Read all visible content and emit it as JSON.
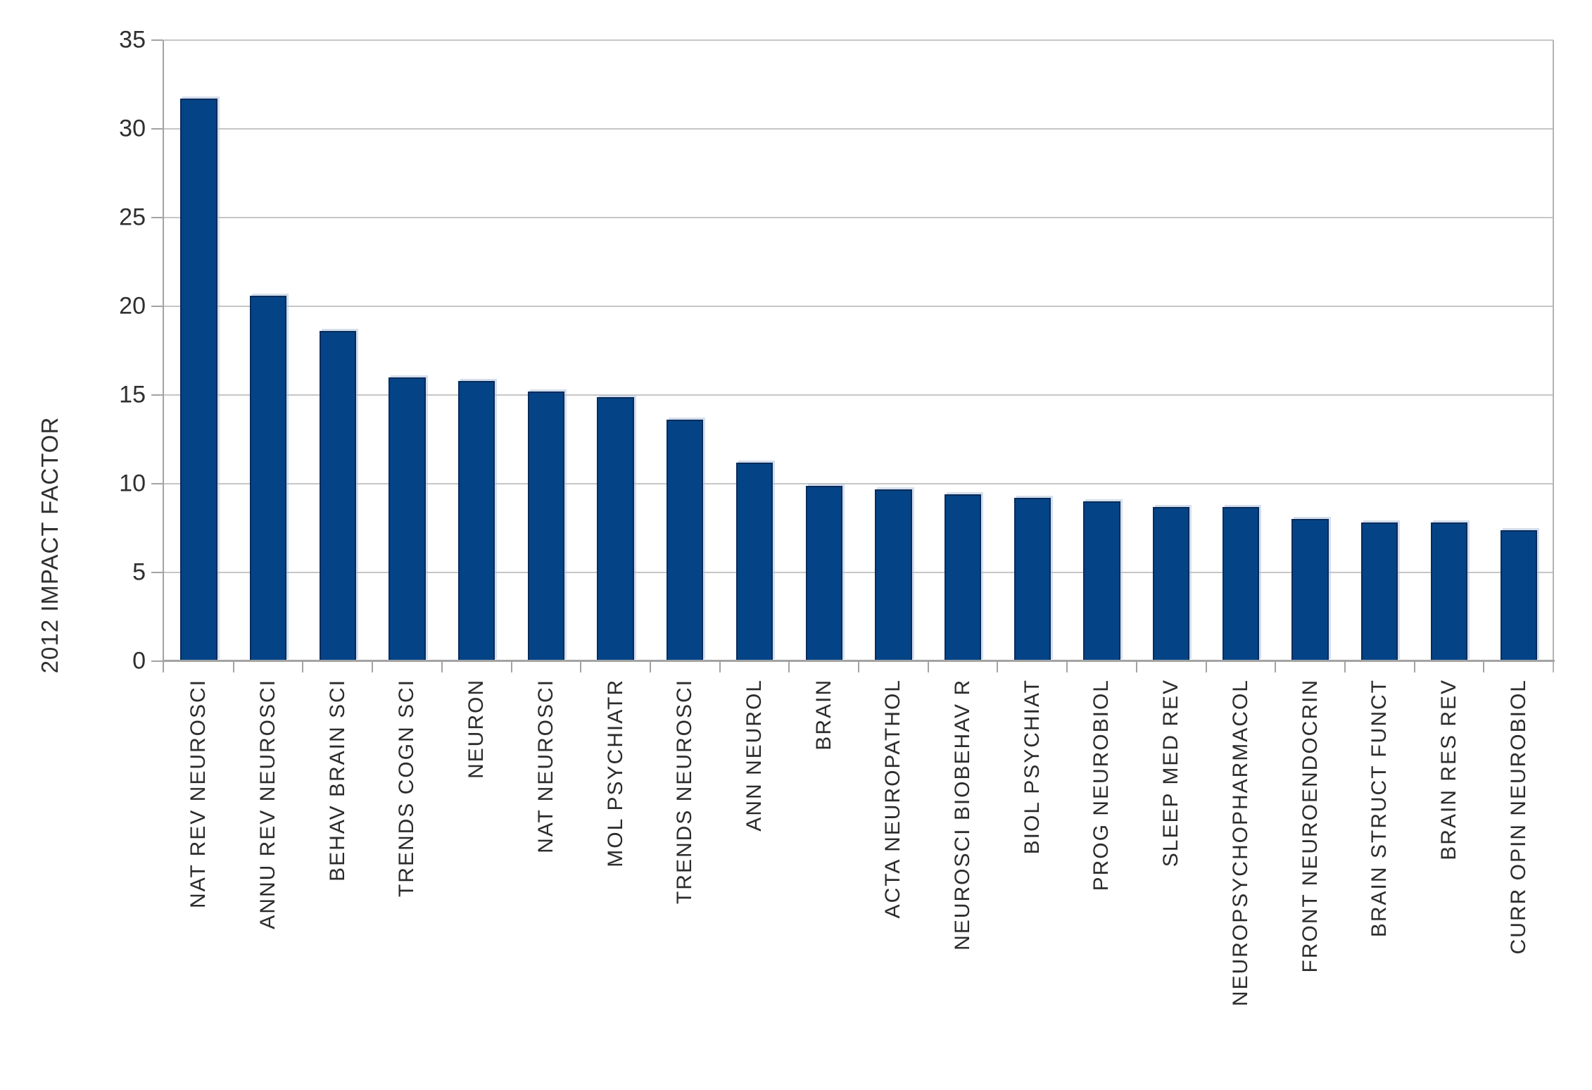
{
  "chart_data": {
    "type": "bar",
    "title": "",
    "xlabel": "",
    "ylabel": "2012 IMPACT FACTOR",
    "categories": [
      "NAT REV NEUROSCI",
      "ANNU REV NEUROSCI",
      "BEHAV BRAIN SCI",
      "TRENDS COGN SCI",
      "NEURON",
      "NAT NEUROSCI",
      "MOL PSYCHIATR",
      "TRENDS NEUROSCI",
      "ANN NEUROL",
      "BRAIN",
      "ACTA NEUROPATHOL",
      "NEUROSCI BIOBEHAV R",
      "BIOL PSYCHIAT",
      "PROG NEUROBIOL",
      "SLEEP MED REV",
      "NEUROPSYCHOPHARMACOL",
      "FRONT NEUROENDOCRIN",
      "BRAIN STRUCT FUNCT",
      "BRAIN RES REV",
      "CURR OPIN NEUROBIOL"
    ],
    "values": [
      31.7,
      20.6,
      18.6,
      16.0,
      15.8,
      15.2,
      14.9,
      13.6,
      11.2,
      9.9,
      9.7,
      9.4,
      9.2,
      9.0,
      8.7,
      8.7,
      8.0,
      7.8,
      7.8,
      7.4
    ],
    "ylim": [
      0,
      35
    ],
    "yticks": [
      35,
      30,
      25,
      20,
      15,
      10,
      5,
      0
    ],
    "grid": "horizontal",
    "legend": "none",
    "bar_color": "#044486",
    "bar_border_color": "#092b5c",
    "bar_highlight_color": "rgba(176,197,221,0.55)",
    "gridline_color": "#c6c6c6",
    "axis_color": "#a3a3a3",
    "text_color": "#2f2f2f",
    "background_color": "#ffffff"
  }
}
